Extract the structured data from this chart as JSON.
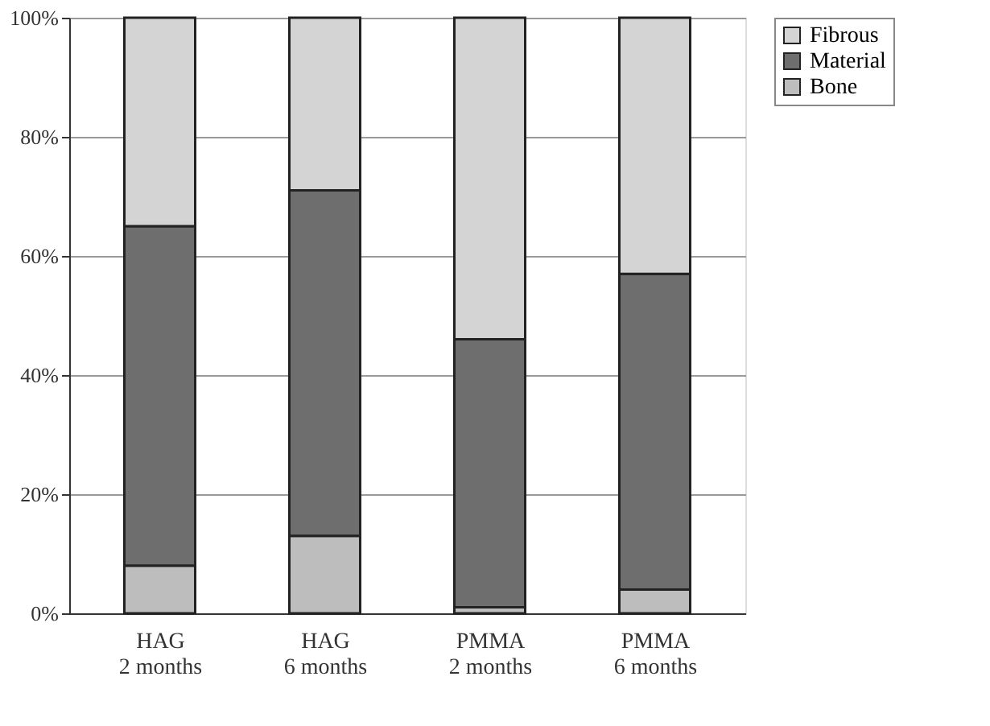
{
  "chart_data": {
    "type": "bar",
    "stacked": true,
    "categories": [
      "HAG\n2 months",
      "HAG\n6 months",
      "PMMA\n2 months",
      "PMMA\n6 months"
    ],
    "series": [
      {
        "name": "Bone",
        "color": "#bdbdbd",
        "values": [
          8,
          13,
          1,
          4
        ]
      },
      {
        "name": "Material",
        "color": "#6e6e6e",
        "values": [
          57,
          58,
          45,
          53
        ]
      },
      {
        "name": "Fibrous",
        "color": "#d4d4d4",
        "values": [
          35,
          29,
          54,
          43
        ]
      }
    ],
    "ylim": [
      0,
      100
    ],
    "yticks": [
      {
        "value": 0,
        "label": "0%"
      },
      {
        "value": 20,
        "label": "20%"
      },
      {
        "value": 40,
        "label": "40%"
      },
      {
        "value": 60,
        "label": "60%"
      },
      {
        "value": 80,
        "label": "80%"
      },
      {
        "value": 100,
        "label": "100%"
      }
    ],
    "grid": "y",
    "legend": "right"
  }
}
